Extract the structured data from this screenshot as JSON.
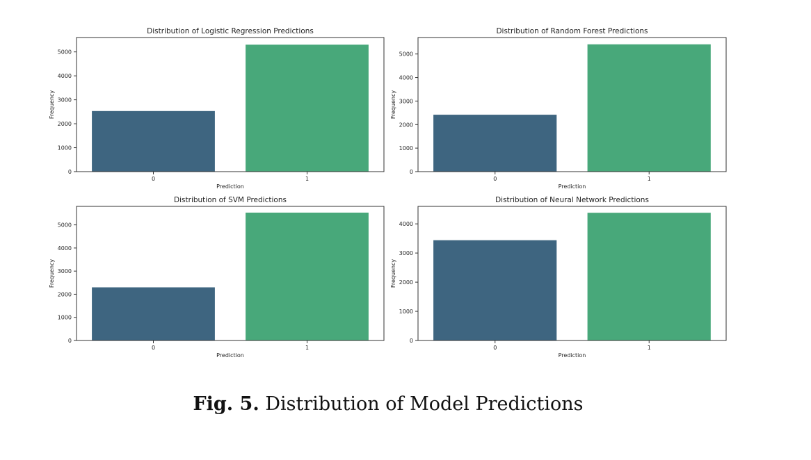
{
  "caption": {
    "number": "Fig. 5.",
    "text": "Distribution of Model Predictions"
  },
  "colors": {
    "class_0": "#3e6580",
    "class_1": "#48a87a",
    "axis": "#333333"
  },
  "chart_data": [
    {
      "type": "bar",
      "title": "Distribution of Logistic Regression Predictions",
      "xlabel": "Prediction",
      "ylabel": "Frequency",
      "categories": [
        "0",
        "1"
      ],
      "values": [
        2530,
        5300
      ],
      "ylim": [
        0,
        5600
      ],
      "yticks": [
        0,
        1000,
        2000,
        3000,
        4000,
        5000
      ],
      "grid": false
    },
    {
      "type": "bar",
      "title": "Distribution of Random Forest Predictions",
      "xlabel": "Prediction",
      "ylabel": "Frequency",
      "categories": [
        "0",
        "1"
      ],
      "values": [
        2420,
        5410
      ],
      "ylim": [
        0,
        5700
      ],
      "yticks": [
        0,
        1000,
        2000,
        3000,
        4000,
        5000
      ],
      "grid": false
    },
    {
      "type": "bar",
      "title": "Distribution of SVM Predictions",
      "xlabel": "Prediction",
      "ylabel": "Frequency",
      "categories": [
        "0",
        "1"
      ],
      "values": [
        2300,
        5530
      ],
      "ylim": [
        0,
        5800
      ],
      "yticks": [
        0,
        1000,
        2000,
        3000,
        4000,
        5000
      ],
      "grid": false
    },
    {
      "type": "bar",
      "title": "Distribution of Neural Network Predictions",
      "xlabel": "Prediction",
      "ylabel": "Frequency",
      "categories": [
        "0",
        "1"
      ],
      "values": [
        3440,
        4380
      ],
      "ylim": [
        0,
        4600
      ],
      "yticks": [
        0,
        1000,
        2000,
        3000,
        4000
      ],
      "grid": false
    }
  ]
}
